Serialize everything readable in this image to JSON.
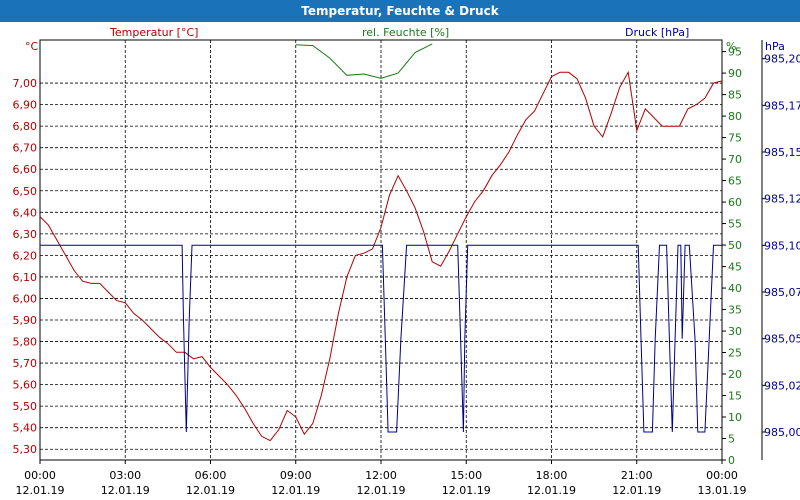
{
  "window": {
    "title": "Temperatur, Feuchte & Druck"
  },
  "chart_data": {
    "type": "line",
    "title": "Temperatur, Feuchte & Druck",
    "grid": true,
    "axes": {
      "temperature": {
        "unit": "°C",
        "label": "Temperatur [°C]",
        "color": "#b30000",
        "range": [
          5.25,
          7.2
        ],
        "ticks": [
          "7,00",
          "6,90",
          "6,80",
          "6,70",
          "6,60",
          "6,50",
          "6,40",
          "6,30",
          "6,20",
          "6,10",
          "6,00",
          "5,90",
          "5,80",
          "5,70",
          "5,60",
          "5,50",
          "5,40",
          "5,30"
        ],
        "tick_values": [
          7.0,
          6.9,
          6.8,
          6.7,
          6.6,
          6.5,
          6.4,
          6.3,
          6.2,
          6.1,
          6.0,
          5.9,
          5.8,
          5.7,
          5.6,
          5.5,
          5.4,
          5.3
        ]
      },
      "humidity": {
        "unit": "%",
        "label": "rel. Feuchte [%]",
        "color": "#1a7a1a",
        "range": [
          0,
          97.7
        ],
        "ticks": [
          "95",
          "90",
          "85",
          "80",
          "75",
          "70",
          "65",
          "60",
          "55",
          "50",
          "45",
          "40",
          "35",
          "30",
          "25",
          "20",
          "15",
          "10",
          "5",
          "0"
        ],
        "tick_values": [
          95,
          90,
          85,
          80,
          75,
          70,
          65,
          60,
          55,
          50,
          45,
          40,
          35,
          30,
          25,
          20,
          15,
          10,
          5,
          0
        ]
      },
      "pressure": {
        "unit": "hPa",
        "label": "Druck [hPa]",
        "color": "#00008b",
        "range": [
          984.985,
          985.21
        ],
        "ticks": [
          "985,20",
          "985,17",
          "985,15",
          "985,12",
          "985,10",
          "985,07",
          "985,05",
          "985,02",
          "985,00"
        ],
        "tick_values": [
          985.2,
          985.175,
          985.15,
          985.125,
          985.1,
          985.075,
          985.05,
          985.025,
          985.0
        ]
      },
      "x": {
        "range": [
          0,
          24
        ],
        "ticks": [
          {
            "time": "00:00",
            "date": "12.01.19"
          },
          {
            "time": "03:00",
            "date": "12.01.19"
          },
          {
            "time": "06:00",
            "date": "12.01.19"
          },
          {
            "time": "09:00",
            "date": "12.01.19"
          },
          {
            "time": "12:00",
            "date": "12.01.19"
          },
          {
            "time": "15:00",
            "date": "12.01.19"
          },
          {
            "time": "18:00",
            "date": "12.01.19"
          },
          {
            "time": "21:00",
            "date": "12.01.19"
          },
          {
            "time": "00:00",
            "date": "13.01.19"
          }
        ]
      }
    },
    "series": [
      {
        "name": "Temperatur [°C]",
        "axis": "temperature",
        "x": [
          0,
          0.3,
          0.6,
          0.9,
          1.2,
          1.5,
          1.8,
          2.1,
          2.4,
          2.7,
          3.0,
          3.3,
          3.6,
          3.9,
          4.2,
          4.5,
          4.8,
          5.1,
          5.4,
          5.7,
          6.0,
          6.3,
          6.6,
          6.9,
          7.2,
          7.5,
          7.8,
          8.1,
          8.4,
          8.7,
          9.0,
          9.3,
          9.6,
          9.9,
          10.2,
          10.5,
          10.8,
          11.1,
          11.4,
          11.7,
          12.0,
          12.3,
          12.6,
          12.9,
          13.2,
          13.5,
          13.8,
          14.1,
          14.4,
          14.7,
          15.0,
          15.3,
          15.6,
          15.9,
          16.2,
          16.5,
          16.8,
          17.1,
          17.4,
          17.7,
          18.0,
          18.3,
          18.6,
          18.9,
          19.2,
          19.5,
          19.8,
          20.1,
          20.4,
          20.7,
          21.0,
          21.3,
          21.6,
          21.9,
          22.2,
          22.5,
          22.8,
          23.1,
          23.4,
          23.7,
          24.0
        ],
        "values": [
          6.38,
          6.34,
          6.27,
          6.2,
          6.13,
          6.08,
          6.07,
          6.07,
          6.03,
          5.99,
          5.98,
          5.93,
          5.9,
          5.86,
          5.82,
          5.79,
          5.75,
          5.75,
          5.72,
          5.73,
          5.68,
          5.64,
          5.6,
          5.55,
          5.49,
          5.42,
          5.36,
          5.34,
          5.39,
          5.48,
          5.45,
          5.37,
          5.42,
          5.55,
          5.72,
          5.93,
          6.1,
          6.2,
          6.21,
          6.23,
          6.33,
          6.48,
          6.57,
          6.5,
          6.42,
          6.31,
          6.17,
          6.15,
          6.22,
          6.3,
          6.38,
          6.45,
          6.5,
          6.57,
          6.62,
          6.68,
          6.76,
          6.83,
          6.87,
          6.95,
          7.03,
          7.05,
          7.05,
          7.02,
          6.93,
          6.8,
          6.75,
          6.86,
          6.98,
          7.05,
          6.78,
          6.88,
          6.84,
          6.8,
          6.8,
          6.8,
          6.88,
          6.9,
          6.93,
          7.0,
          7.01
        ]
      },
      {
        "name": "rel. Feuchte [%]",
        "axis": "humidity",
        "x": [
          9.0,
          9.6,
          10.2,
          10.8,
          11.4,
          12.0,
          12.6,
          13.2,
          13.8
        ],
        "values": [
          96.6,
          96.4,
          93.5,
          89.5,
          89.8,
          88.8,
          90.0,
          94.8,
          96.8
        ]
      },
      {
        "name": "Druck [hPa]",
        "axis": "pressure",
        "x": [
          0,
          5.0,
          5.05,
          5.15,
          5.25,
          5.35,
          12.05,
          12.15,
          12.25,
          12.55,
          12.7,
          12.9,
          14.7,
          14.8,
          14.9,
          14.95,
          15.05,
          21.05,
          21.15,
          21.25,
          21.55,
          21.65,
          21.8,
          22.05,
          22.15,
          22.25,
          22.35,
          22.45,
          22.55,
          22.6,
          22.7,
          22.85,
          23.05,
          23.15,
          23.4,
          23.55,
          23.7,
          24.0
        ],
        "values": [
          985.1,
          985.1,
          985.06,
          985.0,
          985.06,
          985.1,
          985.1,
          985.05,
          985.0,
          985.0,
          985.05,
          985.1,
          985.1,
          985.05,
          985.0,
          985.05,
          985.1,
          985.1,
          985.05,
          985.0,
          985.0,
          985.05,
          985.1,
          985.1,
          985.05,
          985.0,
          985.05,
          985.1,
          985.1,
          985.05,
          985.1,
          985.1,
          985.05,
          985.0,
          985.0,
          985.05,
          985.1,
          985.1
        ]
      }
    ]
  }
}
